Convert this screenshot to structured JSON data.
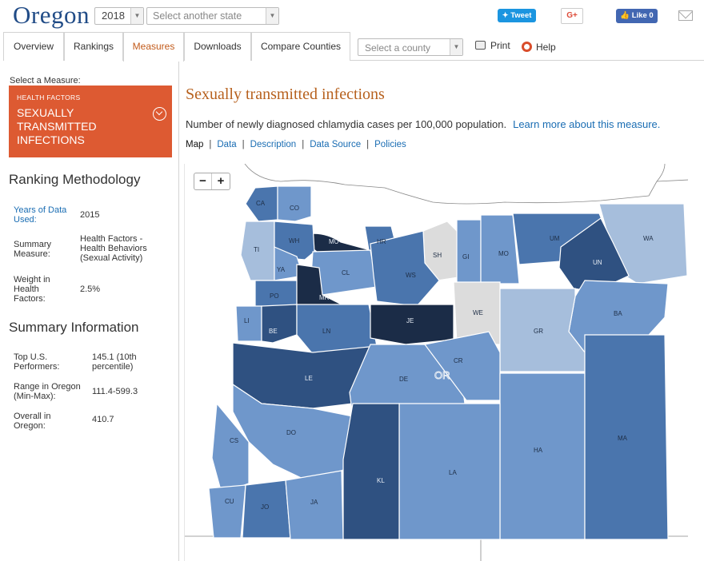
{
  "header": {
    "state": "Oregon",
    "year": "2018",
    "state_placeholder": "Select another state",
    "tweet": "Tweet",
    "gplus": "G+",
    "like": "Like 0"
  },
  "tabs": [
    "Overview",
    "Rankings",
    "Measures",
    "Downloads",
    "Compare Counties"
  ],
  "active_tab": "Measures",
  "county_placeholder": "Select a county",
  "actions": {
    "print": "Print",
    "help": "Help"
  },
  "sidebar": {
    "select_label": "Select a Measure:",
    "measure_category": "HEALTH FACTORS",
    "measure_name": "SEXUALLY TRANSMITTED INFECTIONS",
    "methodology_title": "Ranking Methodology",
    "methodology": [
      {
        "label": "Years of Data Used:",
        "value": "2015"
      },
      {
        "label": "Summary Measure:",
        "value": "Health Factors - Health Behaviors (Sexual Activity)"
      },
      {
        "label": "Weight in Health Factors:",
        "value": "2.5%"
      }
    ],
    "summary_title": "Summary Information",
    "summary": [
      {
        "label": "Top U.S. Performers:",
        "value": "145.1 (10th percentile)"
      },
      {
        "label": "Range in Oregon (Min-Max):",
        "value": "111.4-599.3"
      },
      {
        "label": "Overall in Oregon:",
        "value": "410.7"
      }
    ]
  },
  "main": {
    "title": "Sexually transmitted infections",
    "description": "Number of newly diagnosed chlamydia cases per 100,000 population.",
    "learn_more": "Learn more about this measure.",
    "subnav": [
      "Map",
      "Data",
      "Description",
      "Data Source",
      "Policies"
    ],
    "current_subnav": "Map"
  },
  "map": {
    "zoom_in": "+",
    "zoom_out": "−",
    "state_abbr": "OR",
    "colors": {
      "c1": "#a6bedc",
      "c2": "#6f97cb",
      "c3": "#4a75ad",
      "c4": "#2f5181",
      "c5": "#1b2c47",
      "nodata": "#dcdcdc",
      "border": "#ffffff",
      "outside": "#ffffff"
    },
    "counties": [
      {
        "abbr": "CA",
        "shade": "c3"
      },
      {
        "abbr": "CO",
        "shade": "c2"
      },
      {
        "abbr": "MU",
        "shade": "c5"
      },
      {
        "abbr": "HR",
        "shade": "c3"
      },
      {
        "abbr": "SH",
        "shade": "nodata"
      },
      {
        "abbr": "GI",
        "shade": "c2"
      },
      {
        "abbr": "MO",
        "shade": "c2"
      },
      {
        "abbr": "UM",
        "shade": "c3"
      },
      {
        "abbr": "WA",
        "shade": "c1"
      },
      {
        "abbr": "UN",
        "shade": "c4"
      },
      {
        "abbr": "TI",
        "shade": "c1"
      },
      {
        "abbr": "WH",
        "shade": "c3"
      },
      {
        "abbr": "YA",
        "shade": "c2"
      },
      {
        "abbr": "CL",
        "shade": "c2"
      },
      {
        "abbr": "WS",
        "shade": "c3"
      },
      {
        "abbr": "PO",
        "shade": "c3"
      },
      {
        "abbr": "MR",
        "shade": "c5"
      },
      {
        "abbr": "WE",
        "shade": "nodata"
      },
      {
        "abbr": "BA",
        "shade": "c2"
      },
      {
        "abbr": "LI",
        "shade": "c2"
      },
      {
        "abbr": "BE",
        "shade": "c4"
      },
      {
        "abbr": "LN",
        "shade": "c3"
      },
      {
        "abbr": "JE",
        "shade": "c5"
      },
      {
        "abbr": "GR",
        "shade": "c1"
      },
      {
        "abbr": "LE",
        "shade": "c4"
      },
      {
        "abbr": "DE",
        "shade": "c2"
      },
      {
        "abbr": "CR",
        "shade": "c2"
      },
      {
        "abbr": "DO",
        "shade": "c2"
      },
      {
        "abbr": "CS",
        "shade": "c2"
      },
      {
        "abbr": "HA",
        "shade": "c2"
      },
      {
        "abbr": "MA",
        "shade": "c3"
      },
      {
        "abbr": "LA",
        "shade": "c2"
      },
      {
        "abbr": "KL",
        "shade": "c4"
      },
      {
        "abbr": "CU",
        "shade": "c2"
      },
      {
        "abbr": "JO",
        "shade": "c3"
      },
      {
        "abbr": "JA",
        "shade": "c2"
      }
    ]
  }
}
